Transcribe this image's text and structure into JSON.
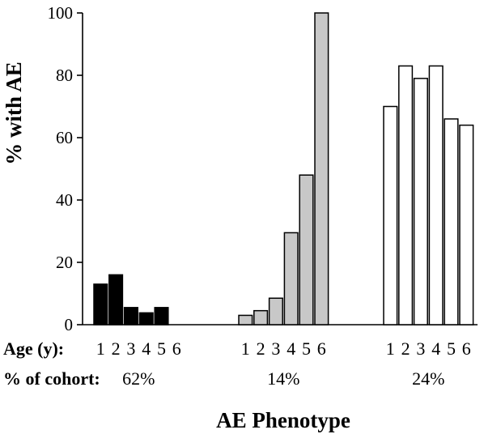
{
  "chart_data": {
    "type": "bar",
    "ylabel": "% with AE",
    "xlabel": "AE Phenotype",
    "ylim": [
      0,
      100
    ],
    "yticks": [
      0,
      20,
      40,
      60,
      80,
      100
    ],
    "age_row_label": "Age (y):",
    "cohort_row_label": "% of cohort:",
    "categories": [
      "1",
      "2",
      "3",
      "4",
      "5",
      "6"
    ],
    "series": [
      {
        "cohort_pct": "62%",
        "fill": "#000000",
        "values": [
          13,
          16,
          5.5,
          3.8,
          5.5,
          0
        ]
      },
      {
        "cohort_pct": "14%",
        "fill": "#c8c8c8",
        "values": [
          3,
          4.5,
          8.5,
          29.5,
          48,
          100
        ]
      },
      {
        "cohort_pct": "24%",
        "fill": "#ffffff",
        "values": [
          70,
          83,
          79,
          83,
          66,
          64
        ]
      }
    ]
  }
}
